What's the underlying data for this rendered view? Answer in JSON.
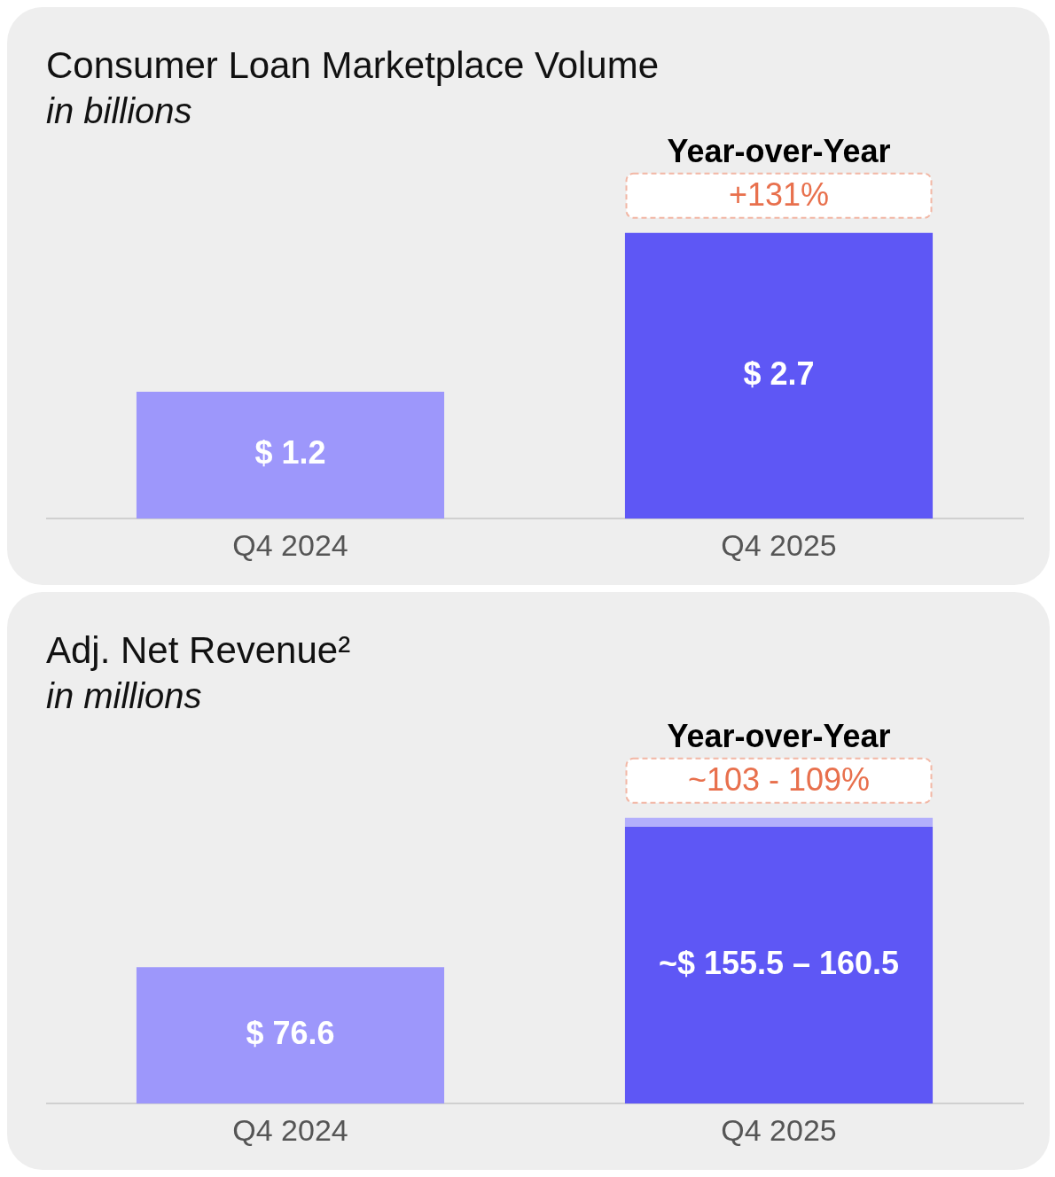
{
  "chart_data": [
    {
      "type": "bar",
      "title": "Consumer Loan Marketplace Volume",
      "subtitle": "in billions",
      "categories": [
        "Q4 2024",
        "Q4 2025"
      ],
      "values": [
        1.2,
        2.7
      ],
      "colors": [
        "#9d97fb",
        "#5e57f5"
      ],
      "value_labels": [
        "$ 1.2",
        "$ 2.7"
      ],
      "annotations": [
        "Year-over-Year",
        "+131%"
      ],
      "legend": false,
      "grid": false
    },
    {
      "type": "bar",
      "title": "Adj. Net Revenue²",
      "subtitle": "in millions",
      "categories": [
        "Q4 2024",
        "Q4 2025"
      ],
      "stacked": true,
      "series": [
        {
          "values": [
            76.6,
            155.5
          ],
          "colors": [
            "#9d97fb",
            "#5e57f5"
          ],
          "value_labels": [
            "$ 76.6",
            "~$ 155.5 – 160.5"
          ]
        },
        {
          "values": [
            null,
            5.0
          ],
          "colors": [
            "#b3affc",
            "#b3affc"
          ]
        }
      ],
      "annotations": [
        "Year-over-Year",
        "~103 - 109%"
      ],
      "legend": false,
      "grid": false
    }
  ]
}
